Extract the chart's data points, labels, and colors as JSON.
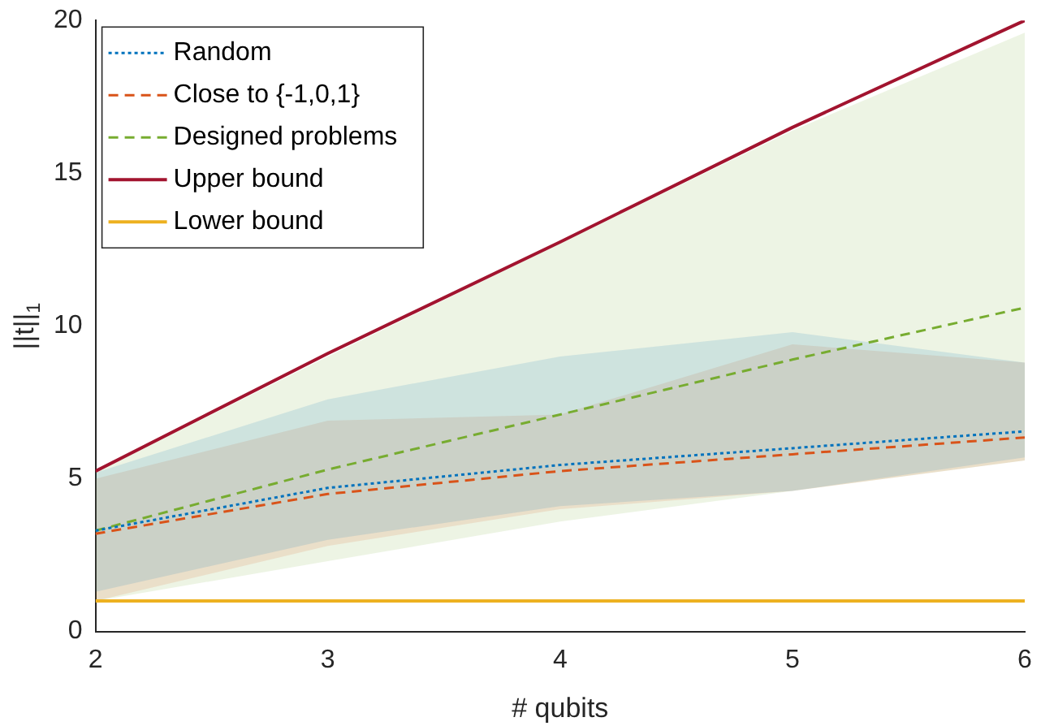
{
  "chart_data": {
    "type": "line",
    "xlabel": "# qubits",
    "ylabel": "||t||$_{1}$",
    "x": [
      2,
      3,
      4,
      5,
      6
    ],
    "xlim": [
      2,
      6
    ],
    "xticks": [
      2,
      3,
      4,
      5,
      6
    ],
    "ylim": [
      0,
      20
    ],
    "yticks": [
      0,
      5,
      10,
      15,
      20
    ],
    "grid": false,
    "legend": "top left",
    "marker": "none",
    "series": [
      {
        "name": "Random",
        "color": "#0072bd",
        "line_style": "dotted",
        "values": [
          3.3,
          4.7,
          5.45,
          6.0,
          6.55
        ],
        "lower": [
          1.3,
          3.0,
          4.1,
          4.6,
          5.7
        ],
        "upper": [
          5.2,
          7.6,
          9.0,
          9.8,
          8.8
        ]
      },
      {
        "name": "Close to {-1,0,1}",
        "color": "#d95319",
        "line_style": "dashed",
        "values": [
          3.2,
          4.5,
          5.25,
          5.8,
          6.35
        ],
        "lower": [
          1.0,
          2.8,
          4.0,
          4.6,
          5.6
        ],
        "upper": [
          5.0,
          6.9,
          7.1,
          9.4,
          8.8
        ]
      },
      {
        "name": "Designed problems",
        "color": "#77ac30",
        "line_style": "dashed",
        "values": [
          3.3,
          5.3,
          7.1,
          8.9,
          10.6
        ],
        "lower": [
          1.0,
          2.3,
          3.6,
          4.6,
          5.6
        ],
        "upper": [
          5.2,
          9.0,
          12.7,
          16.4,
          19.6
        ]
      },
      {
        "name": "Upper bound",
        "color": "#a2142f",
        "line_style": "solid",
        "values": [
          5.25,
          9.1,
          12.75,
          16.5,
          20
        ]
      },
      {
        "name": "Lower bound",
        "color": "#edb120",
        "line_style": "solid",
        "values": [
          1,
          1,
          1,
          1,
          1
        ]
      }
    ]
  }
}
